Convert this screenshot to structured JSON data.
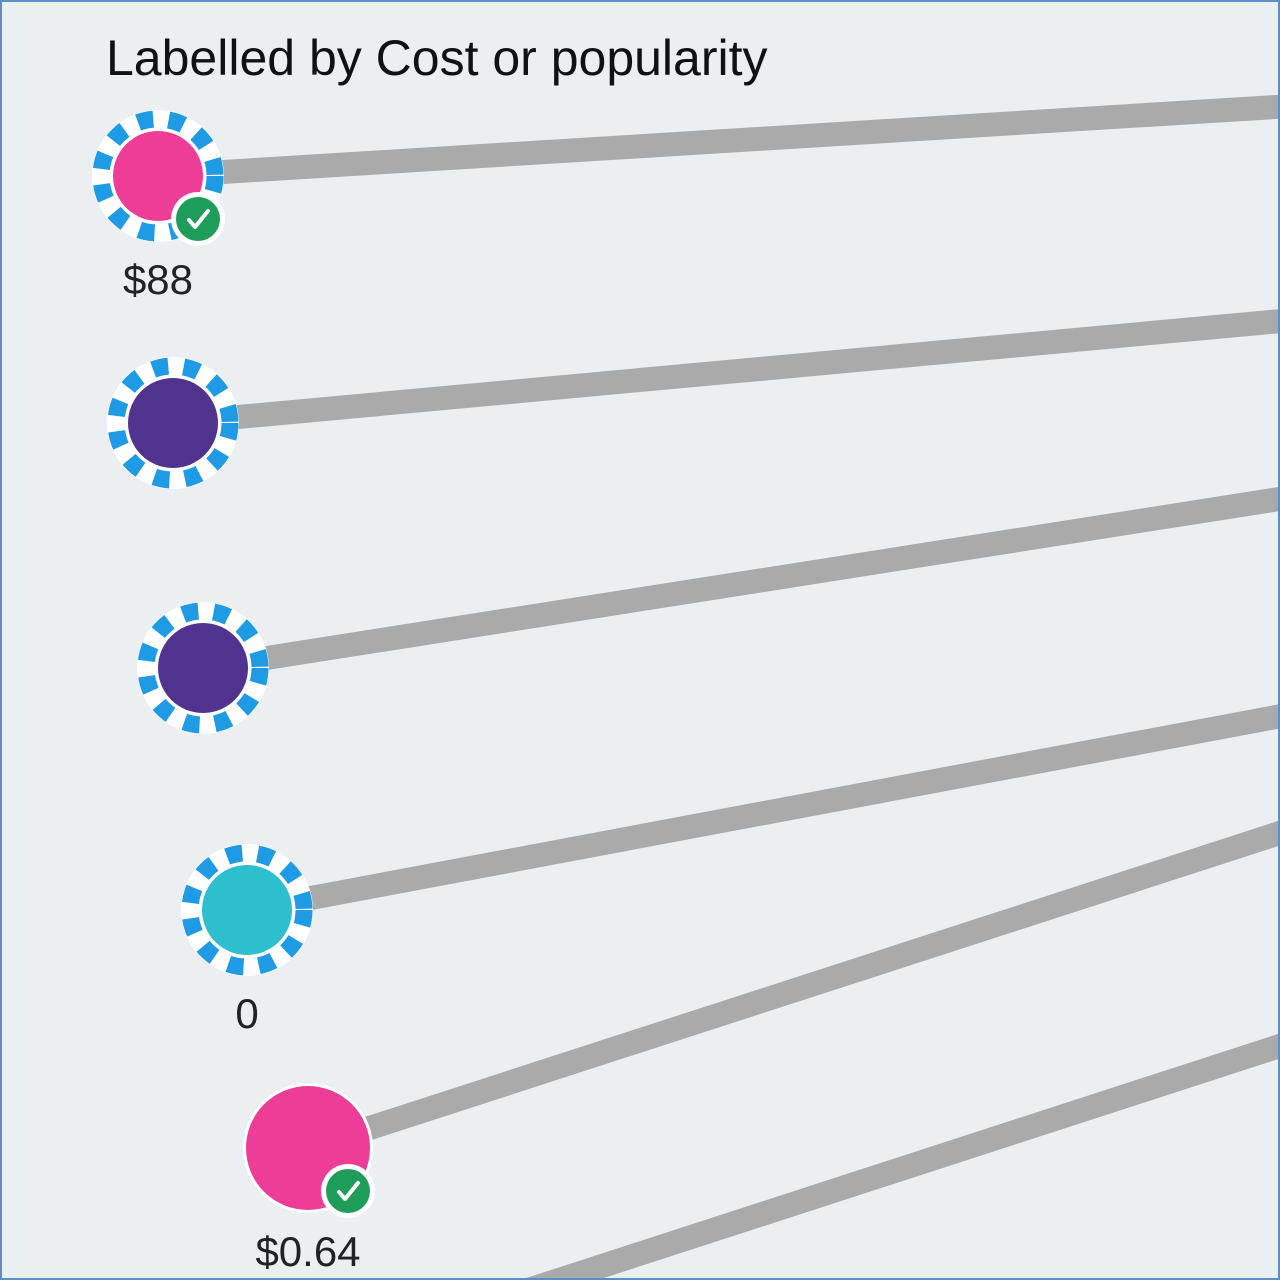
{
  "title": "Labelled by Cost or popularity",
  "colors": {
    "background": "#eceff2",
    "link": "#aaaaaa",
    "selection_dash": "#1f9be6",
    "badge": "#1e9c5a",
    "badge_check": "#ffffff"
  },
  "nodes": [
    {
      "id": "node-1",
      "fill": "#ee3d96",
      "selected": true,
      "badge": "check-icon",
      "label": "$88"
    },
    {
      "id": "node-2",
      "fill": "#50338f",
      "selected": true,
      "badge": null,
      "label": ""
    },
    {
      "id": "node-3",
      "fill": "#50338f",
      "selected": true,
      "badge": null,
      "label": ""
    },
    {
      "id": "node-4",
      "fill": "#2ebfcf",
      "selected": true,
      "badge": null,
      "label": "0"
    },
    {
      "id": "node-5",
      "fill": "#ee3d96",
      "selected": false,
      "badge": "check-icon",
      "label": "$0.64"
    }
  ]
}
